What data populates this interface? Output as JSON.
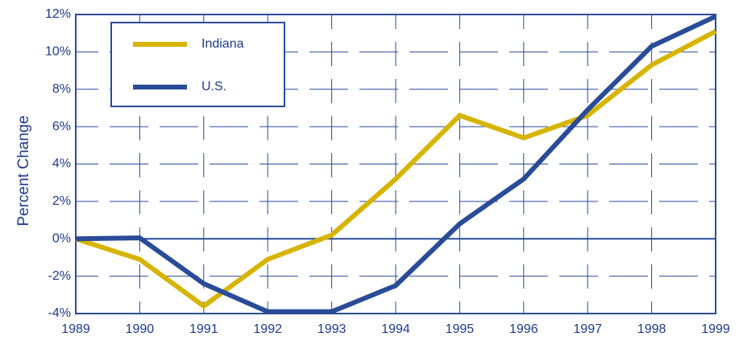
{
  "chart_data": {
    "type": "line",
    "ylabel": "Percent Change",
    "x": [
      1989,
      1990,
      1991,
      1992,
      1993,
      1994,
      1995,
      1996,
      1997,
      1998,
      1999
    ],
    "series": [
      {
        "name": "Indiana",
        "color": "#d6b400",
        "values": [
          0,
          -1.1,
          -3.6,
          -1.1,
          0.2,
          3.2,
          6.6,
          5.4,
          6.6,
          9.3,
          11.1
        ]
      },
      {
        "name": "U.S.",
        "color": "#2a4b98",
        "values": [
          0,
          0.05,
          -2.4,
          -3.9,
          -3.9,
          -2.5,
          0.8,
          3.2,
          6.9,
          10.3,
          11.9
        ]
      }
    ],
    "xlim": [
      1989,
      1999
    ],
    "xticks": [
      1989,
      1990,
      1991,
      1992,
      1993,
      1994,
      1995,
      1996,
      1997,
      1998,
      1999
    ],
    "ylim": [
      -4,
      12
    ],
    "yticks": [
      {
        "value": -4,
        "label": "-4%"
      },
      {
        "value": -2,
        "label": "-2%"
      },
      {
        "value": 0,
        "label": "0%"
      },
      {
        "value": 2,
        "label": "2%"
      },
      {
        "value": 4,
        "label": "4%"
      },
      {
        "value": 6,
        "label": "6%"
      },
      {
        "value": 8,
        "label": "8%"
      },
      {
        "value": 10,
        "label": "10%"
      },
      {
        "value": 12,
        "label": "12%"
      }
    ],
    "grid": true,
    "legend": "upper left"
  }
}
